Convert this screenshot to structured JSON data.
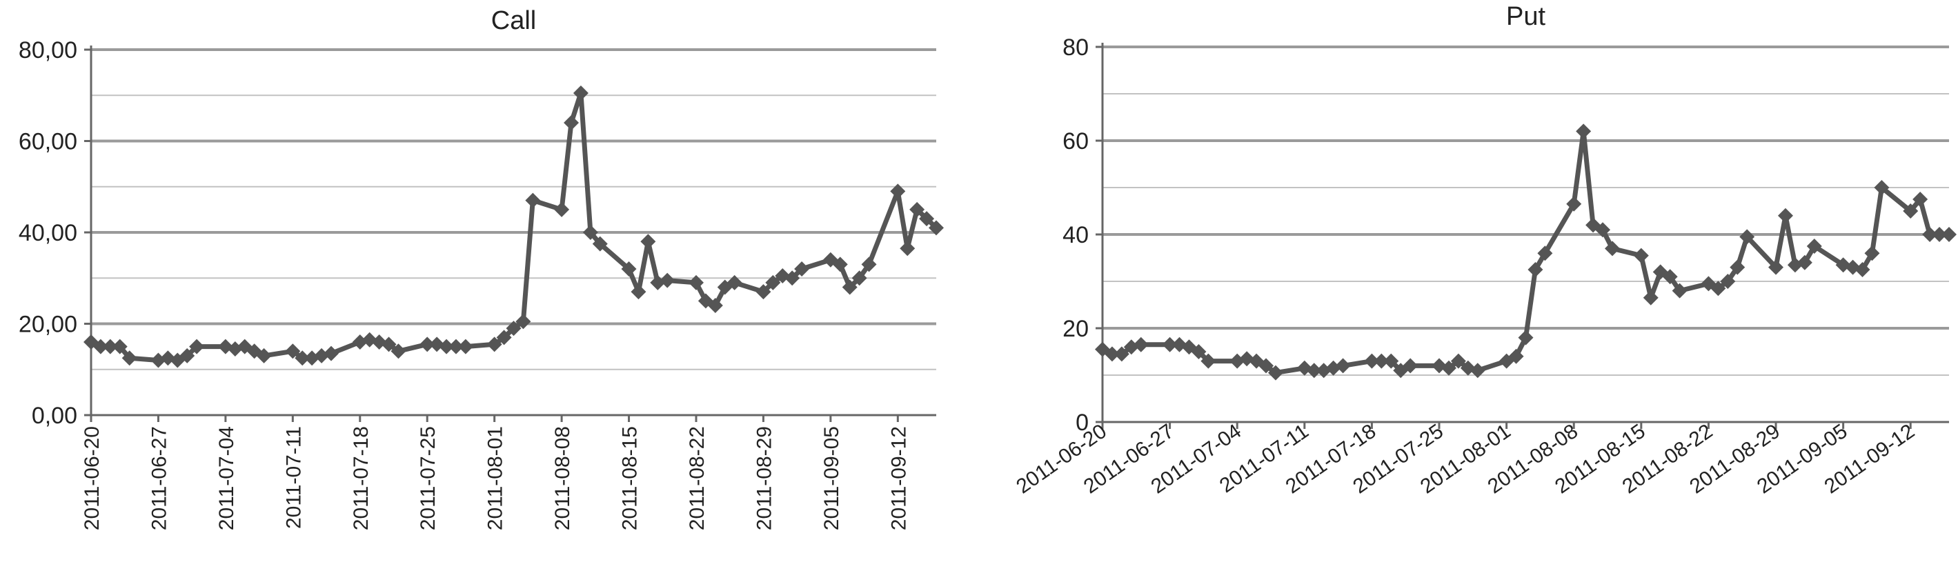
{
  "chart_data": [
    {
      "type": "line",
      "title": "Call",
      "xlabel": "",
      "ylabel": "",
      "ylim": [
        0,
        80
      ],
      "y_ticks": [
        "0,00",
        "20,00",
        "40,00",
        "60,00",
        "80,00"
      ],
      "x_tick_labels": [
        "2011-06-20",
        "2011-06-27",
        "2011-07-04",
        "2011-07-11",
        "2011-07-18",
        "2011-07-25",
        "2011-08-01",
        "2011-08-08",
        "2011-08-15",
        "2011-08-22",
        "2011-08-29",
        "2011-09-05",
        "2011-09-12"
      ],
      "xlim": [
        "2011-06-20",
        "2011-09-16"
      ],
      "grid": true,
      "marker": "diamond",
      "color": "#555555",
      "series": [
        {
          "x": [
            "2011-06-20",
            "2011-06-21",
            "2011-06-22",
            "2011-06-23",
            "2011-06-24",
            "2011-06-27",
            "2011-06-28",
            "2011-06-29",
            "2011-06-30",
            "2011-07-01",
            "2011-07-04",
            "2011-07-05",
            "2011-07-06",
            "2011-07-07",
            "2011-07-08",
            "2011-07-11",
            "2011-07-12",
            "2011-07-13",
            "2011-07-14",
            "2011-07-15",
            "2011-07-18",
            "2011-07-19",
            "2011-07-20",
            "2011-07-21",
            "2011-07-22",
            "2011-07-25",
            "2011-07-26",
            "2011-07-27",
            "2011-07-28",
            "2011-07-29",
            "2011-08-01",
            "2011-08-02",
            "2011-08-03",
            "2011-08-04",
            "2011-08-05",
            "2011-08-08",
            "2011-08-09",
            "2011-08-10",
            "2011-08-11",
            "2011-08-12",
            "2011-08-15",
            "2011-08-16",
            "2011-08-17",
            "2011-08-18",
            "2011-08-19",
            "2011-08-22",
            "2011-08-23",
            "2011-08-24",
            "2011-08-25",
            "2011-08-26",
            "2011-08-29",
            "2011-08-30",
            "2011-08-31",
            "2011-09-01",
            "2011-09-02",
            "2011-09-05",
            "2011-09-06",
            "2011-09-07",
            "2011-09-08",
            "2011-09-09",
            "2011-09-12",
            "2011-09-13",
            "2011-09-14",
            "2011-09-15",
            "2011-09-16"
          ],
          "y": [
            16.0,
            15.0,
            15.0,
            15.0,
            12.5,
            12.0,
            12.5,
            12.0,
            13.0,
            15.0,
            15.0,
            14.5,
            15.0,
            14.0,
            13.0,
            14.0,
            12.5,
            12.5,
            13.0,
            13.5,
            16.0,
            16.5,
            16.0,
            15.5,
            14.0,
            15.5,
            15.5,
            15.0,
            15.0,
            15.0,
            15.5,
            17.0,
            19.0,
            20.5,
            47.0,
            45.0,
            64.0,
            70.5,
            40.0,
            37.5,
            32.0,
            27.0,
            38.0,
            29.0,
            29.5,
            29.0,
            25.0,
            24.0,
            28.0,
            29.0,
            27.0,
            29.0,
            30.5,
            30.0,
            32.0,
            34.0,
            33.0,
            28.0,
            30.0,
            33.0,
            49.0,
            36.5,
            45.0,
            43.0,
            41.0
          ]
        }
      ]
    },
    {
      "type": "line",
      "title": "Put",
      "xlabel": "",
      "ylabel": "",
      "ylim": [
        0,
        80
      ],
      "y_ticks": [
        "0",
        "20",
        "40",
        "60",
        "80"
      ],
      "x_tick_labels": [
        "2011-06-20",
        "2011-06-27",
        "2011-07-04",
        "2011-07-11",
        "2011-07-18",
        "2011-07-25",
        "2011-08-01",
        "2011-08-08",
        "2011-08-15",
        "2011-08-22",
        "2011-08-29",
        "2011-09-05",
        "2011-09-12"
      ],
      "xlim": [
        "2011-06-20",
        "2011-09-16"
      ],
      "grid": true,
      "marker": "diamond",
      "color": "#555555",
      "series": [
        {
          "x": [
            "2011-06-20",
            "2011-06-21",
            "2011-06-22",
            "2011-06-23",
            "2011-06-24",
            "2011-06-27",
            "2011-06-28",
            "2011-06-29",
            "2011-06-30",
            "2011-07-01",
            "2011-07-04",
            "2011-07-05",
            "2011-07-06",
            "2011-07-07",
            "2011-07-08",
            "2011-07-11",
            "2011-07-12",
            "2011-07-13",
            "2011-07-14",
            "2011-07-15",
            "2011-07-18",
            "2011-07-19",
            "2011-07-20",
            "2011-07-21",
            "2011-07-22",
            "2011-07-25",
            "2011-07-26",
            "2011-07-27",
            "2011-07-28",
            "2011-07-29",
            "2011-08-01",
            "2011-08-02",
            "2011-08-03",
            "2011-08-04",
            "2011-08-05",
            "2011-08-08",
            "2011-08-09",
            "2011-08-10",
            "2011-08-11",
            "2011-08-12",
            "2011-08-15",
            "2011-08-16",
            "2011-08-17",
            "2011-08-18",
            "2011-08-19",
            "2011-08-22",
            "2011-08-23",
            "2011-08-24",
            "2011-08-25",
            "2011-08-26",
            "2011-08-29",
            "2011-08-30",
            "2011-08-31",
            "2011-09-01",
            "2011-09-02",
            "2011-09-05",
            "2011-09-06",
            "2011-09-07",
            "2011-09-08",
            "2011-09-09",
            "2011-09-12",
            "2011-09-13",
            "2011-09-14",
            "2011-09-15",
            "2011-09-16"
          ],
          "y": [
            15.5,
            14.5,
            14.5,
            16.0,
            16.5,
            16.5,
            16.5,
            16.0,
            15.0,
            13.0,
            13.0,
            13.5,
            13.0,
            12.0,
            10.5,
            11.5,
            11.0,
            11.0,
            11.5,
            12.0,
            13.0,
            13.0,
            13.0,
            11.0,
            12.0,
            12.0,
            11.5,
            13.0,
            11.5,
            11.0,
            13.0,
            14.0,
            18.0,
            32.5,
            36.0,
            46.5,
            62.0,
            42.0,
            41.0,
            37.0,
            35.5,
            26.5,
            32.0,
            31.0,
            28.0,
            29.5,
            28.5,
            30.0,
            33.0,
            39.5,
            33.0,
            44.0,
            33.5,
            34.0,
            37.5,
            33.5,
            33.0,
            32.5,
            36.0,
            50.0,
            45.0,
            47.5,
            40.0,
            40.0,
            40.0
          ]
        }
      ]
    }
  ]
}
